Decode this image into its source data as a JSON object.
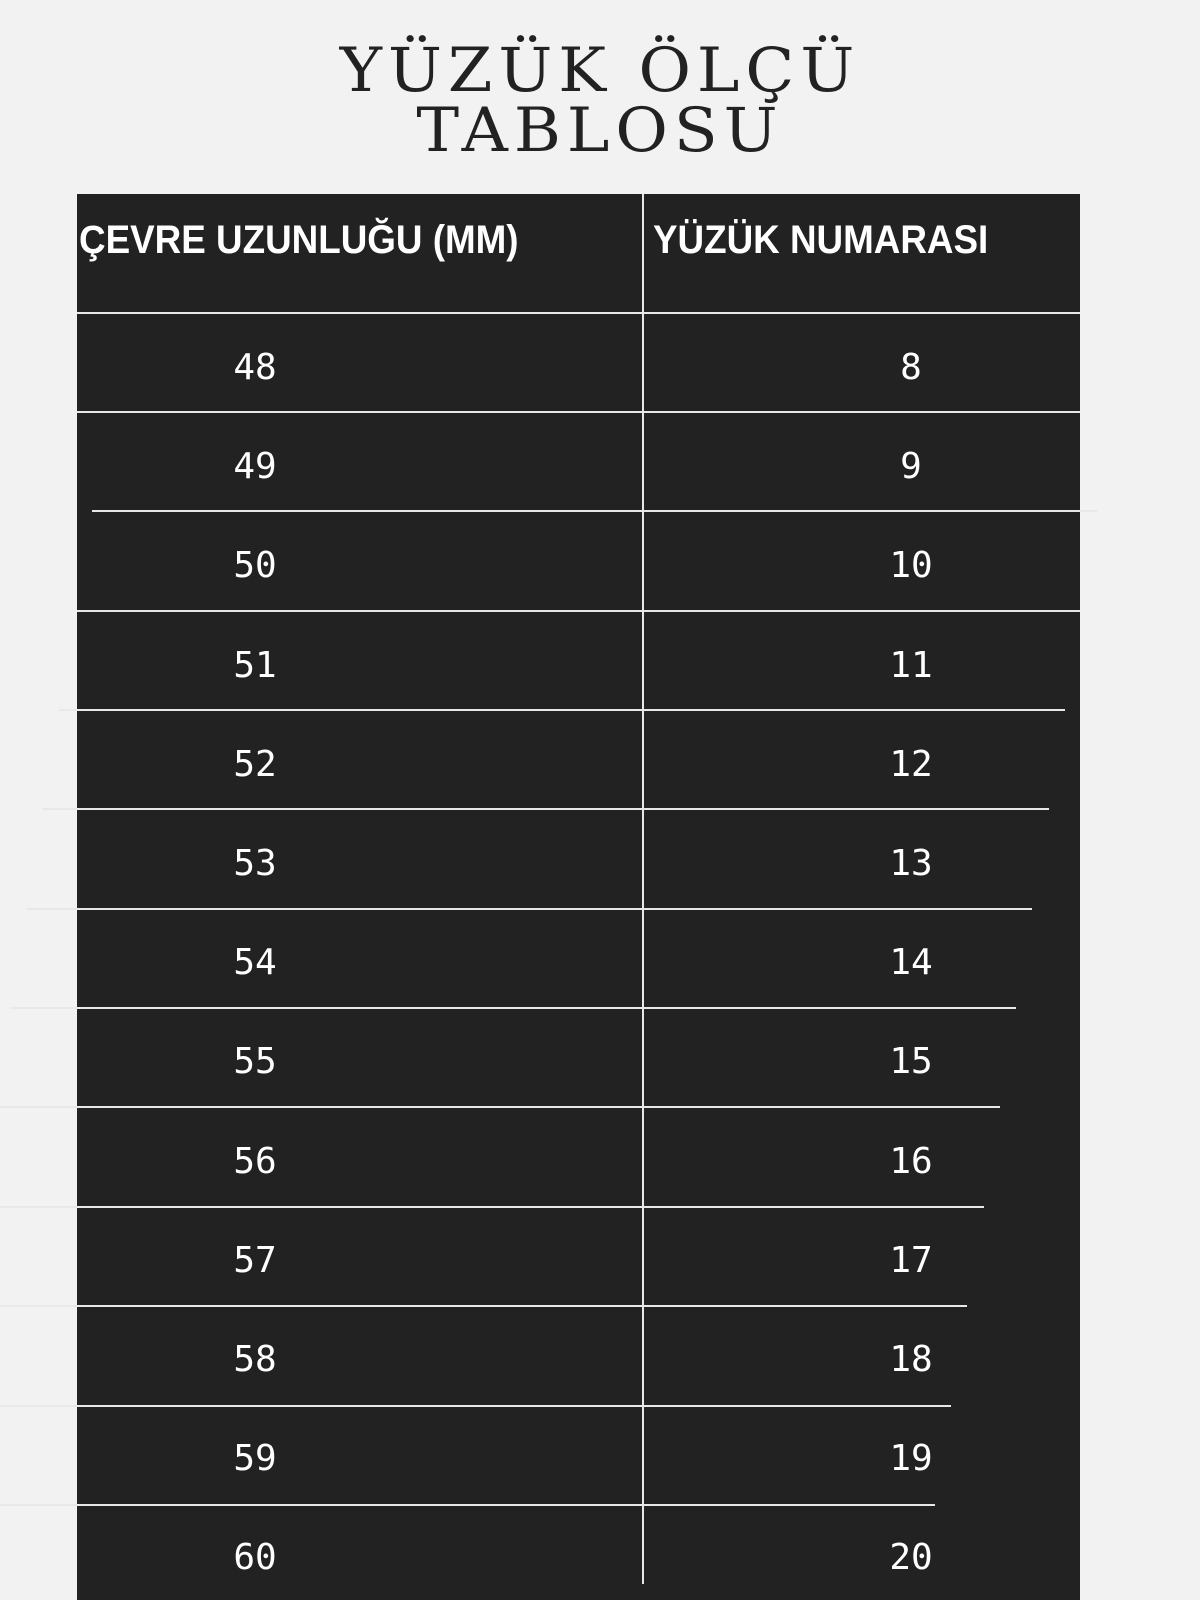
{
  "title": {
    "line1": "YÜZÜK ÖLÇÜ",
    "line2": "TABLOSU"
  },
  "table": {
    "headers": [
      "ÇEVRE UZUNLUĞU (MM)",
      "YÜZÜK NUMARASI"
    ],
    "rows": [
      [
        "48",
        "8"
      ],
      [
        "49",
        "9"
      ],
      [
        "50",
        "10"
      ],
      [
        "51",
        "11"
      ],
      [
        "52",
        "12"
      ],
      [
        "53",
        "13"
      ],
      [
        "54",
        "14"
      ],
      [
        "55",
        "15"
      ],
      [
        "56",
        "16"
      ],
      [
        "57",
        "17"
      ],
      [
        "58",
        "18"
      ],
      [
        "59",
        "19"
      ],
      [
        "60",
        "20"
      ]
    ]
  },
  "colors": {
    "background": "#f2f2f2",
    "table": "#222222",
    "text": "#ffffff"
  }
}
